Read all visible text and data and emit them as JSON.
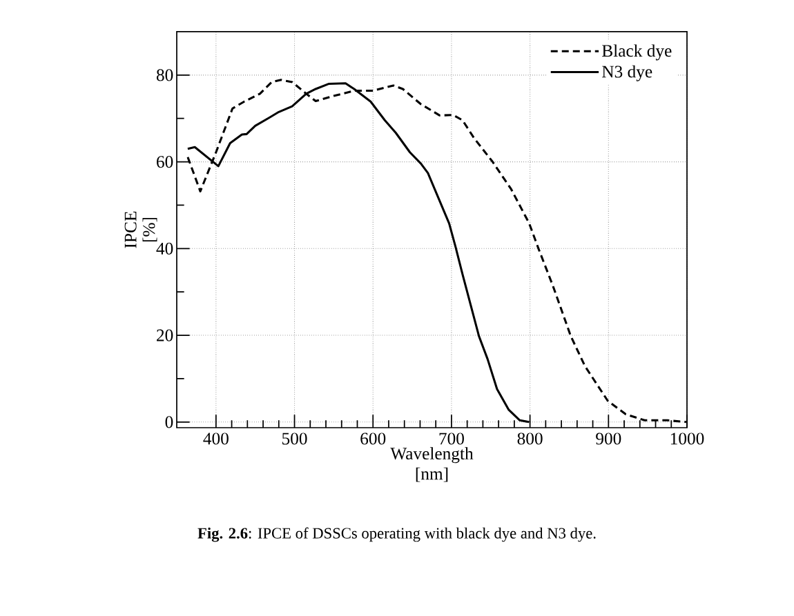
{
  "chart_data": {
    "type": "line",
    "xlabel": "Wavelength [nm]",
    "ylabel": "IPCE [%]",
    "xlim": [
      350,
      1000
    ],
    "ylim": [
      -1.3,
      90
    ],
    "xticks": [
      400,
      500,
      600,
      700,
      800,
      900,
      1000
    ],
    "yticks": [
      0,
      20,
      40,
      60,
      80
    ],
    "grid": true,
    "legend": "top right",
    "series": [
      {
        "name": "Black dye",
        "color": "#000000",
        "line_style": "dashed",
        "x": [
          364,
          380,
          400,
          421,
          436,
          456,
          471,
          483,
          497,
          515,
          527,
          550,
          576,
          600,
          626,
          638,
          661,
          685,
          702,
          714,
          729,
          752,
          776,
          799,
          811,
          829,
          852,
          870,
          899,
          922,
          946,
          975,
          999
        ],
        "values": [
          61.1,
          53.2,
          62.2,
          72.3,
          73.9,
          75.7,
          78.4,
          78.9,
          78.4,
          75.7,
          74.0,
          75.2,
          76.4,
          76.4,
          77.6,
          76.8,
          73.3,
          70.7,
          70.8,
          69.6,
          65.4,
          60.1,
          53.7,
          45.8,
          39.9,
          31.5,
          19.8,
          12.9,
          4.9,
          1.8,
          0.4,
          0.4,
          0
        ]
      },
      {
        "name": "N3 dye",
        "color": "#000000",
        "line_style": "solid",
        "x": [
          364,
          373,
          403,
          418,
          433,
          439,
          450,
          468,
          480,
          497,
          515,
          527,
          544,
          565,
          576,
          597,
          615,
          629,
          647,
          661,
          670,
          697,
          705,
          714,
          735,
          746,
          758,
          773,
          787,
          799
        ],
        "values": [
          63.0,
          63.4,
          59.0,
          64.3,
          66.3,
          66.4,
          68.3,
          70.2,
          71.5,
          72.8,
          75.7,
          76.8,
          78.0,
          78.1,
          76.8,
          73.9,
          69.6,
          66.7,
          62.2,
          59.6,
          57.4,
          45.8,
          40.5,
          34.1,
          19.8,
          14.5,
          7.6,
          2.8,
          0.4,
          0
        ]
      }
    ],
    "annotations": [
      "**Fig. 2.6**: IPCE of DSSCs operating with black dye and N3 dye."
    ]
  }
}
